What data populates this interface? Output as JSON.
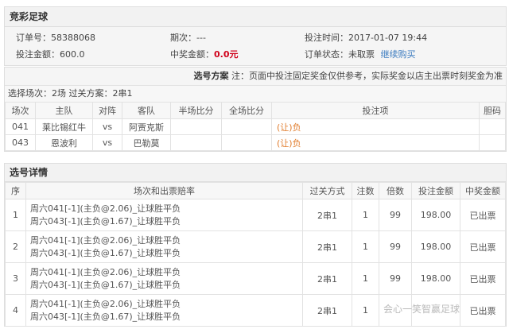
{
  "title": "竞彩足球",
  "info": {
    "order_label": "订单号：",
    "order_no": "58388068",
    "issue_label": "期次：",
    "issue": "---",
    "time_label": "投注时间：",
    "time": "2017-01-07 19:44",
    "amount_label": "投注金额：",
    "amount": "600.0",
    "prize_label": "中奖金额：",
    "prize": "0.0元",
    "status_label": "订单状态：",
    "status": "未取票",
    "continue_link": "继续购买"
  },
  "plan": {
    "title": "选号方案",
    "note": "注：页面中投注固定奖金仅供参考，实际奖金以店主出票时刻奖金为准",
    "selection": "选择场次：2场 过关方案：2串1",
    "headers": [
      "场次",
      "主队",
      "对阵",
      "客队",
      "半场比分",
      "全场比分",
      "投注项",
      "胆码"
    ],
    "rows": [
      {
        "no": "041",
        "home": "莱比锡红牛",
        "vs": "vs",
        "away": "阿贾克斯",
        "half": "",
        "full": "",
        "bet": "(让)负",
        "banker": ""
      },
      {
        "no": "043",
        "home": "恩波利",
        "vs": "vs",
        "away": "巴勒莫",
        "half": "",
        "full": "",
        "bet": "(让)负",
        "banker": ""
      }
    ]
  },
  "detail": {
    "title": "选号详情",
    "headers": [
      "序",
      "场次和出票赔率",
      "过关方式",
      "注数",
      "倍数",
      "投注金额",
      "中奖金额"
    ],
    "rows": [
      {
        "seq": "1",
        "line1": "周六041[-1](主负@2.06)_让球胜平负",
        "line2": "周六043[-1](主负@1.67)_让球胜平负",
        "pass": "2串1",
        "count": "1",
        "multiple": "99",
        "amount": "198.00",
        "prize": "已出票"
      },
      {
        "seq": "2",
        "line1": "周六041[-1](主负@2.06)_让球胜平负",
        "line2": "周六043[-1](主负@1.67)_让球胜平负",
        "pass": "2串1",
        "count": "1",
        "multiple": "99",
        "amount": "198.00",
        "prize": "已出票"
      },
      {
        "seq": "3",
        "line1": "周六041[-1](主负@2.06)_让球胜平负",
        "line2": "周六043[-1](主负@1.67)_让球胜平负",
        "pass": "2串1",
        "count": "1",
        "multiple": "99",
        "amount": "198.00",
        "prize": "已出票"
      },
      {
        "seq": "4",
        "line1": "周六041[-1](主负@2.06)_让球胜平负",
        "line2": "周六043[-1](主负@1.67)_让球胜平负",
        "pass": "2串1",
        "count": "1",
        "multiple": "",
        "amount": "",
        "prize": "已出票"
      }
    ]
  },
  "watermark": "会心一笑智赢足球"
}
